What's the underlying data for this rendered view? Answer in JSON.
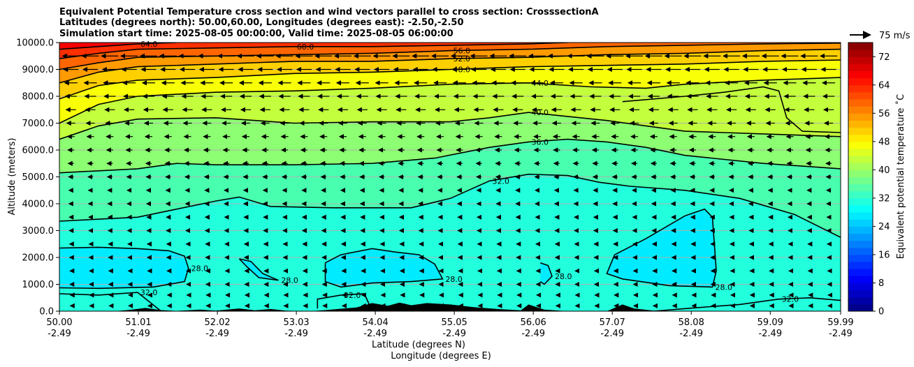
{
  "chart_data": {
    "type": "heatmap",
    "title_lines": [
      "Equivalent Potential Temperature cross section and wind vectors parallel to cross section: CrosssectionA",
      "Latitudes (degrees north): 50.00,60.00, Longitudes (degrees east): -2.50,-2.50",
      "Simulation start time: 2025-08-05 00:00:00, Valid time: 2025-08-05 06:00:00"
    ],
    "ylabel": "Altitude (meters)",
    "xlabel_lines": [
      "Latitude (degrees N)",
      "Longitude (degrees E)"
    ],
    "ylim": [
      0,
      10000
    ],
    "xlim": [
      50.0,
      59.99
    ],
    "yticks": [
      {
        "value": 0,
        "label": "0.0"
      },
      {
        "value": 1000,
        "label": "1000.0"
      },
      {
        "value": 2000,
        "label": "2000.0"
      },
      {
        "value": 3000,
        "label": "3000.0"
      },
      {
        "value": 4000,
        "label": "4000.0"
      },
      {
        "value": 5000,
        "label": "5000.0"
      },
      {
        "value": 6000,
        "label": "6000.0"
      },
      {
        "value": 7000,
        "label": "7000.0"
      },
      {
        "value": 8000,
        "label": "8000.0"
      },
      {
        "value": 9000,
        "label": "9000.0"
      },
      {
        "value": 10000,
        "label": "10000.0"
      }
    ],
    "xticks": [
      {
        "value": 50.0,
        "lat": "50.00",
        "lon": "-2.49"
      },
      {
        "value": 51.01,
        "lat": "51.01",
        "lon": "-2.49"
      },
      {
        "value": 52.02,
        "lat": "52.02",
        "lon": "-2.49"
      },
      {
        "value": 53.03,
        "lat": "53.03",
        "lon": "-2.49"
      },
      {
        "value": 54.04,
        "lat": "54.04",
        "lon": "-2.49"
      },
      {
        "value": 55.05,
        "lat": "55.05",
        "lon": "-2.49"
      },
      {
        "value": 56.06,
        "lat": "56.06",
        "lon": "-2.49"
      },
      {
        "value": 57.07,
        "lat": "57.07",
        "lon": "-2.49"
      },
      {
        "value": 58.08,
        "lat": "58.08",
        "lon": "-2.49"
      },
      {
        "value": 59.09,
        "lat": "59.09",
        "lon": "-2.49"
      },
      {
        "value": 59.99,
        "lat": "59.99",
        "lon": "-2.49"
      }
    ],
    "colorbar": {
      "label": "Equivalent potential temperature ˚C",
      "min": 0,
      "max": 76,
      "step": 2,
      "ticks": [
        "0",
        "8",
        "16",
        "24",
        "32",
        "40",
        "48",
        "56",
        "64",
        "72"
      ]
    },
    "quiver_key": {
      "label": "75 m/s",
      "speed": 75
    },
    "contours": [
      {
        "level": 28,
        "label": "28.0",
        "points": [
          [
            50.0,
            2350
          ],
          [
            50.5,
            2380
          ],
          [
            51.0,
            2330
          ],
          [
            51.4,
            2250
          ],
          [
            51.6,
            2050
          ],
          [
            51.65,
            1600
          ],
          [
            51.6,
            1100
          ],
          [
            51.2,
            900
          ],
          [
            50.5,
            850
          ],
          [
            50.0,
            870
          ]
        ]
      },
      {
        "level": 28,
        "label": "28.0",
        "points": [
          [
            52.3,
            1950
          ],
          [
            52.45,
            1850
          ],
          [
            52.6,
            1400
          ],
          [
            52.8,
            1150
          ],
          [
            52.55,
            1250
          ],
          [
            52.4,
            1650
          ],
          [
            52.3,
            1950
          ]
        ]
      },
      {
        "level": 28,
        "label": "28.0",
        "points": [
          [
            53.4,
            1800
          ],
          [
            53.6,
            2100
          ],
          [
            54.0,
            2330
          ],
          [
            54.3,
            2200
          ],
          [
            54.6,
            2100
          ],
          [
            54.8,
            1750
          ],
          [
            54.9,
            1200
          ],
          [
            54.5,
            1100
          ],
          [
            54.0,
            1050
          ],
          [
            53.6,
            900
          ],
          [
            53.4,
            1100
          ],
          [
            53.4,
            1800
          ]
        ]
      },
      {
        "level": 28,
        "label": "28.0",
        "points": [
          [
            56.15,
            1800
          ],
          [
            56.25,
            1700
          ],
          [
            56.3,
            1300
          ],
          [
            56.2,
            1000
          ],
          [
            56.15,
            1100
          ]
        ]
      },
      {
        "level": 28,
        "label": "28.0",
        "points": [
          [
            57.1,
            2100
          ],
          [
            57.5,
            2700
          ],
          [
            58.0,
            3550
          ],
          [
            58.25,
            3800
          ],
          [
            58.35,
            3500
          ],
          [
            58.4,
            1500
          ],
          [
            58.35,
            900
          ],
          [
            57.8,
            950
          ],
          [
            57.2,
            1200
          ],
          [
            57.0,
            1400
          ],
          [
            57.1,
            2100
          ]
        ]
      },
      {
        "level": 32,
        "label": "32.0",
        "points": [
          [
            50.0,
            3350
          ],
          [
            51.0,
            3500
          ],
          [
            51.5,
            3800
          ],
          [
            52.0,
            4100
          ],
          [
            52.3,
            4250
          ],
          [
            52.7,
            3900
          ],
          [
            53.5,
            3850
          ],
          [
            54.5,
            3850
          ],
          [
            55.0,
            4200
          ],
          [
            55.5,
            4850
          ],
          [
            56.0,
            5100
          ],
          [
            56.5,
            5050
          ],
          [
            56.9,
            4800
          ],
          [
            57.3,
            4650
          ],
          [
            58.0,
            4500
          ],
          [
            58.7,
            4200
          ],
          [
            59.4,
            3600
          ],
          [
            59.99,
            2750
          ]
        ]
      },
      {
        "level": 32,
        "label": "32.0",
        "points": [
          [
            50.0,
            650
          ],
          [
            50.5,
            600
          ],
          [
            51.0,
            700
          ],
          [
            51.15,
            350
          ],
          [
            51.3,
            0
          ]
        ]
      },
      {
        "level": 32,
        "label": "32.0",
        "points": [
          [
            53.3,
            100
          ],
          [
            53.3,
            450
          ],
          [
            53.6,
            600
          ],
          [
            53.9,
            650
          ],
          [
            54.0,
            0
          ]
        ]
      },
      {
        "level": 32,
        "label": "32.0",
        "points": [
          [
            57.6,
            0
          ],
          [
            58.1,
            120
          ],
          [
            58.7,
            250
          ],
          [
            59.2,
            450
          ],
          [
            59.6,
            500
          ],
          [
            59.99,
            400
          ]
        ]
      },
      {
        "level": 36,
        "label": "36.0",
        "points": [
          [
            50.0,
            5150
          ],
          [
            51.0,
            5300
          ],
          [
            51.5,
            5500
          ],
          [
            52.0,
            5450
          ],
          [
            53.0,
            5450
          ],
          [
            54.0,
            5500
          ],
          [
            54.8,
            5700
          ],
          [
            55.5,
            6100
          ],
          [
            56.0,
            6300
          ],
          [
            56.5,
            6400
          ],
          [
            57.0,
            6300
          ],
          [
            57.5,
            6100
          ],
          [
            58.0,
            5800
          ],
          [
            59.0,
            5500
          ],
          [
            59.99,
            5300
          ]
        ]
      },
      {
        "level": 40,
        "label": "40.0",
        "points": [
          [
            50.0,
            6400
          ],
          [
            50.5,
            6900
          ],
          [
            51.0,
            7150
          ],
          [
            52.0,
            7200
          ],
          [
            53.0,
            7000
          ],
          [
            54.0,
            7050
          ],
          [
            55.0,
            7050
          ],
          [
            55.5,
            7200
          ],
          [
            56.0,
            7400
          ],
          [
            56.5,
            7250
          ],
          [
            57.0,
            7100
          ],
          [
            57.5,
            6900
          ],
          [
            58.0,
            6700
          ],
          [
            58.5,
            6650
          ],
          [
            59.0,
            6600
          ],
          [
            59.99,
            6500
          ]
        ]
      },
      {
        "level": 40,
        "label": "",
        "points": [
          [
            57.2,
            7800
          ],
          [
            58.0,
            8000
          ],
          [
            58.5,
            8150
          ],
          [
            59.0,
            8350
          ],
          [
            59.2,
            8200
          ],
          [
            59.3,
            7200
          ],
          [
            59.5,
            6700
          ],
          [
            59.99,
            6650
          ]
        ]
      },
      {
        "level": 44,
        "label": "44.0",
        "points": [
          [
            50.0,
            7000
          ],
          [
            50.5,
            7700
          ],
          [
            51.0,
            8000
          ],
          [
            52.0,
            8150
          ],
          [
            53.0,
            8200
          ],
          [
            54.0,
            8300
          ],
          [
            55.0,
            8450
          ],
          [
            56.0,
            8500
          ],
          [
            56.8,
            8350
          ],
          [
            57.5,
            8300
          ],
          [
            58.0,
            8450
          ],
          [
            59.0,
            8600
          ],
          [
            59.99,
            8700
          ]
        ]
      },
      {
        "level": 48,
        "label": "48.0",
        "points": [
          [
            50.0,
            7900
          ],
          [
            50.5,
            8400
          ],
          [
            51.0,
            8600
          ],
          [
            52.0,
            8700
          ],
          [
            53.0,
            8850
          ],
          [
            54.0,
            8900
          ],
          [
            55.0,
            9000
          ],
          [
            56.0,
            9100
          ],
          [
            57.0,
            9150
          ],
          [
            58.0,
            9200
          ],
          [
            59.0,
            9300
          ],
          [
            59.99,
            9350
          ]
        ]
      },
      {
        "level": 52,
        "label": "52.0",
        "points": [
          [
            50.0,
            8500
          ],
          [
            50.5,
            8900
          ],
          [
            51.0,
            9100
          ],
          [
            52.0,
            9200
          ],
          [
            53.0,
            9300
          ],
          [
            54.0,
            9300
          ],
          [
            55.0,
            9400
          ],
          [
            56.0,
            9450
          ],
          [
            57.0,
            9550
          ],
          [
            58.0,
            9600
          ],
          [
            59.0,
            9700
          ],
          [
            59.99,
            9750
          ]
        ]
      },
      {
        "level": 56,
        "label": "56.0",
        "points": [
          [
            50.0,
            9000
          ],
          [
            50.5,
            9250
          ],
          [
            51.0,
            9450
          ],
          [
            52.0,
            9500
          ],
          [
            53.0,
            9550
          ],
          [
            54.0,
            9600
          ],
          [
            55.0,
            9700
          ],
          [
            56.0,
            9750
          ],
          [
            57.0,
            9850
          ],
          [
            58.0,
            9900
          ],
          [
            59.0,
            9950
          ],
          [
            59.99,
            9980
          ]
        ]
      },
      {
        "level": 60,
        "label": "60.0",
        "points": [
          [
            50.0,
            9400
          ],
          [
            50.5,
            9600
          ],
          [
            51.0,
            9750
          ],
          [
            52.0,
            9800
          ],
          [
            53.0,
            9850
          ],
          [
            54.0,
            9850
          ],
          [
            55.0,
            9900
          ],
          [
            56.0,
            9950
          ],
          [
            56.5,
            10000
          ]
        ]
      },
      {
        "level": 64,
        "label": "64.0",
        "points": [
          [
            50.0,
            9750
          ],
          [
            51.0,
            9950
          ],
          [
            51.5,
            10000
          ]
        ]
      }
    ],
    "wind_vectors": {
      "direction": "southward (toward 50.00 N)",
      "rows": [
        {
          "altitude": 200,
          "speed": 2
        },
        {
          "altitude": 600,
          "speed": 2
        },
        {
          "altitude": 1000,
          "speed": 3
        },
        {
          "altitude": 1500,
          "speed": 3
        },
        {
          "altitude": 2000,
          "speed": 4
        },
        {
          "altitude": 2500,
          "speed": 4
        },
        {
          "altitude": 3000,
          "speed": 5
        },
        {
          "altitude": 3500,
          "speed": 5
        },
        {
          "altitude": 4000,
          "speed": 6
        },
        {
          "altitude": 4500,
          "speed": 6
        },
        {
          "altitude": 5000,
          "speed": 7
        },
        {
          "altitude": 5500,
          "speed": 8
        },
        {
          "altitude": 6000,
          "speed": 9
        },
        {
          "altitude": 6500,
          "speed": 10
        },
        {
          "altitude": 7000,
          "speed": 12
        },
        {
          "altitude": 7500,
          "speed": 14
        },
        {
          "altitude": 8000,
          "speed": 16
        },
        {
          "altitude": 8500,
          "speed": 18
        },
        {
          "altitude": 9000,
          "speed": 21
        },
        {
          "altitude": 9500,
          "speed": 24
        }
      ]
    },
    "terrain": [
      [
        50.0,
        0
      ],
      [
        50.7,
        0
      ],
      [
        50.9,
        50
      ],
      [
        51.1,
        120
      ],
      [
        51.3,
        40
      ],
      [
        51.5,
        10
      ],
      [
        51.8,
        60
      ],
      [
        52.0,
        20
      ],
      [
        52.3,
        100
      ],
      [
        52.5,
        30
      ],
      [
        52.7,
        80
      ],
      [
        52.9,
        20
      ],
      [
        53.2,
        0
      ],
      [
        53.4,
        40
      ],
      [
        53.6,
        90
      ],
      [
        53.8,
        140
      ],
      [
        54.0,
        300
      ],
      [
        54.2,
        200
      ],
      [
        54.35,
        320
      ],
      [
        54.5,
        220
      ],
      [
        54.7,
        300
      ],
      [
        55.0,
        250
      ],
      [
        55.3,
        150
      ],
      [
        55.6,
        80
      ],
      [
        55.9,
        30
      ],
      [
        56.0,
        250
      ],
      [
        56.2,
        60
      ],
      [
        56.5,
        0
      ],
      [
        57.0,
        0
      ],
      [
        57.2,
        250
      ],
      [
        57.35,
        100
      ],
      [
        57.6,
        20
      ],
      [
        57.9,
        0
      ],
      [
        59.99,
        0
      ]
    ]
  }
}
